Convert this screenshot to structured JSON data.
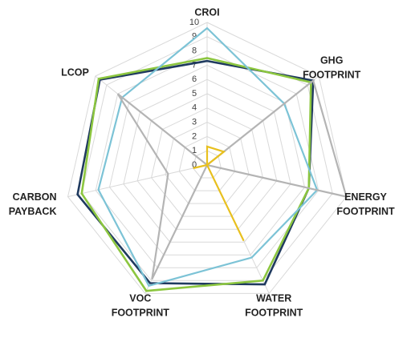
{
  "chart_data": {
    "type": "radar",
    "title": "",
    "axes": [
      {
        "lines": [
          "CROI"
        ]
      },
      {
        "lines": [
          "GHG",
          "FOOTPRINT"
        ]
      },
      {
        "lines": [
          "ENERGY",
          "FOOTPRINT"
        ]
      },
      {
        "lines": [
          "WATER",
          "FOOTPRINT"
        ]
      },
      {
        "lines": [
          "VOC",
          "FOOTPRINT"
        ]
      },
      {
        "lines": [
          "CARBON",
          "PAYBACK"
        ]
      },
      {
        "lines": [
          "LCOP"
        ]
      }
    ],
    "range": [
      0,
      10
    ],
    "tick_labels": [
      "0",
      "1",
      "2",
      "3",
      "4",
      "5",
      "6",
      "7",
      "8",
      "9",
      "10"
    ],
    "grid": true,
    "legend": "none",
    "series": [
      {
        "color": "#1f3a5f",
        "values": [
          7.3,
          9.5,
          7.3,
          9.3,
          9.2,
          9.3,
          9.6
        ]
      },
      {
        "color": "#8cc63f",
        "values": [
          7.5,
          9.3,
          7.3,
          9.0,
          9.8,
          9.0,
          9.7
        ]
      },
      {
        "color": "#7cc3d6",
        "values": [
          9.6,
          6.9,
          7.9,
          7.2,
          9.4,
          7.8,
          7.6
        ]
      },
      {
        "color": "#b4b4b4",
        "values": [
          0.0,
          9.5,
          10.0,
          0.0,
          8.9,
          2.8,
          8.0
        ]
      },
      {
        "color": "#e8c01f",
        "values": [
          1.3,
          1.5,
          0.0,
          5.9,
          0.0,
          1.0,
          0.0
        ]
      }
    ]
  }
}
